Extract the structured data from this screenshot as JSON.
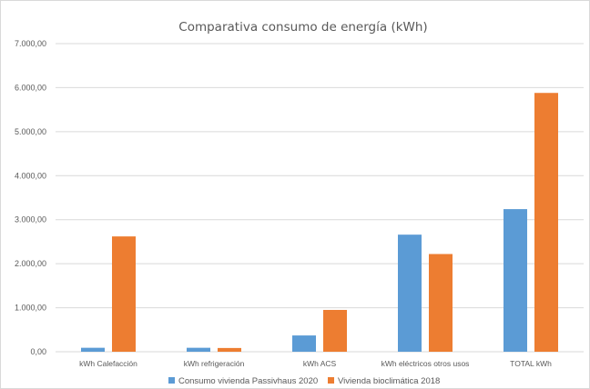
{
  "chart_data": {
    "type": "bar",
    "title": "Comparativa consumo de energía (kWh)",
    "xlabel": "",
    "ylabel": "",
    "ylim": [
      0,
      7000
    ],
    "yticks": [
      0,
      1000,
      2000,
      3000,
      4000,
      5000,
      6000,
      7000
    ],
    "ytick_labels": [
      "0,00",
      "1.000,00",
      "2.000,00",
      "3.000,00",
      "4.000,00",
      "5.000,00",
      "6.000,00",
      "7.000,00"
    ],
    "categories": [
      "kWh Calefacción",
      "kWh refrigeración",
      "kWh ACS",
      "kWh eléctricos otros usos",
      "TOTAL kWh"
    ],
    "series": [
      {
        "name": "Consumo vivienda Passivhaus 2020",
        "color": "#5b9bd5",
        "values": [
          90,
          90,
          370,
          2660,
          3240
        ]
      },
      {
        "name": "Vivienda bioclimática 2018",
        "color": "#ed7d31",
        "values": [
          2620,
          85,
          950,
          2220,
          5880
        ]
      }
    ],
    "grid": true,
    "legend_position": "bottom"
  }
}
